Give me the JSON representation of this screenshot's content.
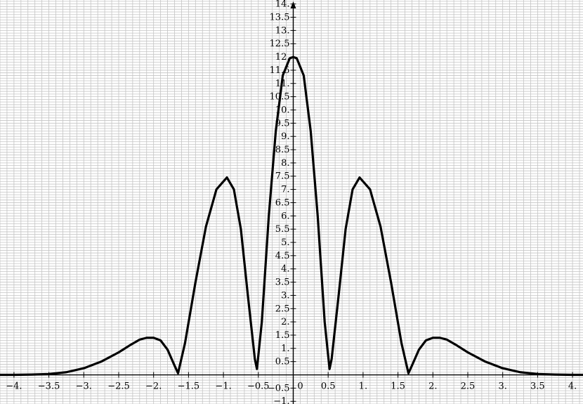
{
  "chart_data": {
    "type": "line",
    "title": "",
    "xlabel": "",
    "ylabel": "",
    "xlim": [
      -4.2,
      4.15
    ],
    "ylim": [
      -1.1,
      14.15
    ],
    "grid": true,
    "grid_step": {
      "x": 0.1,
      "y": 0.1
    },
    "x_ticks": [
      {
        "value": -4,
        "label": "-4."
      },
      {
        "value": -3.5,
        "label": "-3.5"
      },
      {
        "value": -3,
        "label": "-3."
      },
      {
        "value": -2.5,
        "label": "-2.5"
      },
      {
        "value": -2,
        "label": "-2."
      },
      {
        "value": -1.5,
        "label": "-1.5"
      },
      {
        "value": -1,
        "label": "-1."
      },
      {
        "value": -0.5,
        "label": "-0.5"
      },
      {
        "value": 0,
        "label": "0"
      },
      {
        "value": 0.5,
        "label": "0.5"
      },
      {
        "value": 1,
        "label": "1."
      },
      {
        "value": 1.5,
        "label": "1.5"
      },
      {
        "value": 2,
        "label": "2."
      },
      {
        "value": 2.5,
        "label": "2.5"
      },
      {
        "value": 3,
        "label": "3."
      },
      {
        "value": 3.5,
        "label": "3.5"
      },
      {
        "value": 4,
        "label": "4."
      }
    ],
    "y_ticks": [
      {
        "value": -1,
        "label": "-1."
      },
      {
        "value": -0.5,
        "label": "-0.5"
      },
      {
        "value": 0.5,
        "label": "0.5"
      },
      {
        "value": 1,
        "label": "1."
      },
      {
        "value": 1.5,
        "label": "1.5"
      },
      {
        "value": 2,
        "label": "2."
      },
      {
        "value": 2.5,
        "label": "2.5"
      },
      {
        "value": 3,
        "label": "3."
      },
      {
        "value": 3.5,
        "label": "3.5"
      },
      {
        "value": 4,
        "label": "4."
      },
      {
        "value": 4.5,
        "label": "4.5"
      },
      {
        "value": 5,
        "label": "5."
      },
      {
        "value": 5.5,
        "label": "5.5"
      },
      {
        "value": 6,
        "label": "6."
      },
      {
        "value": 6.5,
        "label": "6.5"
      },
      {
        "value": 7,
        "label": "7."
      },
      {
        "value": 7.5,
        "label": "7.5"
      },
      {
        "value": 8,
        "label": "8."
      },
      {
        "value": 8.5,
        "label": "8.5"
      },
      {
        "value": 9,
        "label": "9."
      },
      {
        "value": 9.5,
        "label": "9.5"
      },
      {
        "value": 10,
        "label": "10."
      },
      {
        "value": 10.5,
        "label": "10.5"
      },
      {
        "value": 11,
        "label": "11."
      },
      {
        "value": 11.5,
        "label": "11.5"
      },
      {
        "value": 12,
        "label": "12."
      },
      {
        "value": 12.5,
        "label": "12.5"
      },
      {
        "value": 13,
        "label": "13."
      },
      {
        "value": 13.5,
        "label": "13.5"
      },
      {
        "value": 14,
        "label": "14."
      }
    ],
    "series": [
      {
        "x": [
          -4.2,
          -4.0,
          -3.75,
          -3.5,
          -3.25,
          -3.0,
          -2.75,
          -2.5,
          -2.35,
          -2.2,
          -2.1,
          -2.0,
          -1.9,
          -1.8,
          -1.7,
          -1.65,
          -1.55,
          -1.4,
          -1.25,
          -1.1,
          -0.95,
          -0.85,
          -0.75,
          -0.65,
          -0.55,
          -0.52,
          -0.45,
          -0.35,
          -0.25,
          -0.15,
          -0.05,
          0.0,
          0.05,
          0.15,
          0.25,
          0.35,
          0.45,
          0.52,
          0.55,
          0.65,
          0.75,
          0.85,
          0.95,
          1.1,
          1.25,
          1.4,
          1.55,
          1.65,
          1.7,
          1.8,
          1.9,
          2.0,
          2.1,
          2.2,
          2.35,
          2.5,
          2.75,
          3.0,
          3.25,
          3.5,
          3.75,
          4.0,
          4.15
        ],
        "y": [
          0.0,
          0.0,
          0.01,
          0.03,
          0.1,
          0.25,
          0.5,
          0.85,
          1.1,
          1.33,
          1.4,
          1.4,
          1.3,
          0.95,
          0.35,
          0.06,
          1.2,
          3.5,
          5.6,
          7.0,
          7.45,
          7.0,
          5.5,
          3.0,
          0.6,
          0.22,
          2.0,
          6.0,
          9.2,
          11.3,
          11.95,
          12.0,
          11.95,
          11.3,
          9.2,
          6.0,
          2.0,
          0.22,
          0.6,
          3.0,
          5.5,
          7.0,
          7.45,
          7.0,
          5.6,
          3.5,
          1.2,
          0.06,
          0.35,
          0.95,
          1.3,
          1.4,
          1.4,
          1.33,
          1.1,
          0.85,
          0.5,
          0.25,
          0.1,
          0.03,
          0.01,
          0.0,
          0.0
        ]
      }
    ]
  }
}
